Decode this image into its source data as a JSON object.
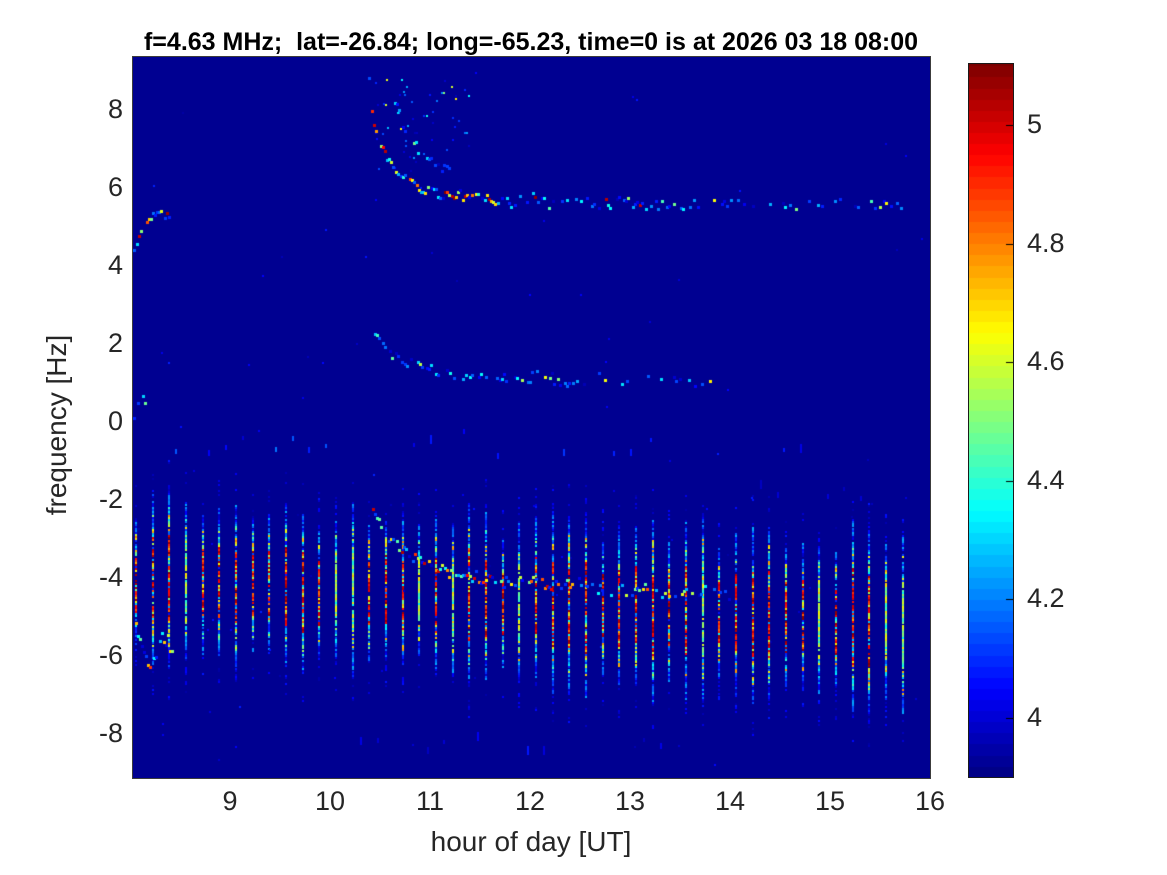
{
  "chart_data": {
    "type": "heatmap",
    "title": "f=4.63 MHz;  lat=-26.84; long=-65.23, time=0 is at 2026 03 18 08:00",
    "xlabel": "hour of day [UT]",
    "ylabel": "frequency [Hz]",
    "x_range": [
      8.03,
      16.0
    ],
    "y_range": [
      -9.13,
      9.36
    ],
    "x_ticks": [
      9,
      10,
      11,
      12,
      13,
      14,
      15,
      16
    ],
    "y_ticks": [
      8,
      6,
      4,
      2,
      0,
      -2,
      -4,
      -6,
      -8
    ],
    "grid": false,
    "background_value": 3.92,
    "colorbar": {
      "colormap": "jet",
      "min": 3.9,
      "max": 5.1,
      "display_min": 3.9005,
      "display_max": 5.103,
      "ticks": [
        5,
        4.8,
        4.6,
        4.4,
        4.2,
        4
      ],
      "position": "right"
    },
    "features": {
      "stripes": {
        "comment": "periodic vertical spectral lines every 10 min, drifting downward",
        "t_start": 8.05,
        "t_end": 15.85,
        "interval": 0.1667,
        "center_start": -4.0,
        "center_end": -5.15,
        "half_len": 2.05
      },
      "dot_rows": [
        {
          "freq": -0.5,
          "jitter": 0.35,
          "t0": 8.45,
          "t1": 10.05,
          "prob": 0.7,
          "vmin": 3.98,
          "vmax": 4.2
        },
        {
          "freq": -0.55,
          "jitter": 0.35,
          "t0": 10.5,
          "t1": 13.1,
          "prob": 0.45,
          "vmin": 3.97,
          "vmax": 4.12
        },
        {
          "freq": -0.6,
          "jitter": 0.3,
          "t0": 13.2,
          "t1": 15.3,
          "prob": 0.2,
          "vmin": 3.96,
          "vmax": 4.08
        },
        {
          "freq": -8.25,
          "jitter": 0.2,
          "t0": 10.3,
          "t1": 13.6,
          "prob": 0.3,
          "vmin": 3.96,
          "vmax": 4.1
        },
        {
          "freq": -1.8,
          "jitter": 0.3,
          "t0": 13.3,
          "t1": 15.6,
          "prob": 0.35,
          "vmin": 3.96,
          "vmax": 4.1
        }
      ],
      "traces": [
        {
          "name": "sunrise-trace-upper",
          "palette": "hot",
          "density": 0.92,
          "spread": 0.13,
          "size": 3,
          "fade_after": 0.42,
          "points": [
            [
              10.38,
              8.75
            ],
            [
              10.41,
              8.0
            ],
            [
              10.45,
              7.45
            ],
            [
              10.52,
              7.0
            ],
            [
              10.6,
              6.6
            ],
            [
              10.72,
              6.3
            ],
            [
              10.88,
              6.05
            ],
            [
              11.05,
              5.9
            ],
            [
              11.25,
              5.82
            ],
            [
              11.45,
              5.9
            ],
            [
              11.6,
              5.7
            ],
            [
              11.8,
              5.65
            ],
            [
              12.0,
              5.8
            ],
            [
              12.2,
              5.6
            ],
            [
              12.45,
              5.72
            ],
            [
              12.7,
              5.6
            ],
            [
              12.95,
              5.68
            ],
            [
              13.2,
              5.58
            ],
            [
              13.45,
              5.62
            ]
          ]
        },
        {
          "name": "sunrise-trace-upper-tail",
          "palette": "cool",
          "density": 0.22,
          "spread": 0.12,
          "size": 3,
          "points": [
            [
              13.5,
              5.6
            ],
            [
              14.0,
              5.63
            ],
            [
              14.5,
              5.58
            ],
            [
              15.0,
              5.65
            ],
            [
              15.4,
              5.6
            ],
            [
              15.9,
              5.63
            ]
          ]
        },
        {
          "name": "sunrise-trace-echo",
          "palette": "cool",
          "density": 0.38,
          "spread": 0.12,
          "size": 3,
          "points": [
            [
              10.62,
              8.45
            ],
            [
              10.72,
              7.7
            ],
            [
              10.85,
              7.1
            ],
            [
              11.0,
              6.7
            ],
            [
              11.2,
              6.4
            ]
          ]
        },
        {
          "name": "sunrise-trace-middle",
          "palette": "cool",
          "density": 0.6,
          "spread": 0.15,
          "size": 3,
          "fade_after": 0.6,
          "points": [
            [
              10.42,
              2.25
            ],
            [
              10.52,
              1.95
            ],
            [
              10.65,
              1.72
            ],
            [
              10.82,
              1.52
            ],
            [
              11.05,
              1.38
            ],
            [
              11.3,
              1.22
            ],
            [
              11.55,
              1.32
            ],
            [
              11.8,
              1.12
            ],
            [
              12.1,
              1.22
            ],
            [
              12.4,
              1.05
            ],
            [
              12.7,
              1.15
            ],
            [
              13.0,
              1.05
            ],
            [
              13.3,
              1.1
            ],
            [
              13.6,
              1.0
            ],
            [
              13.9,
              1.05
            ]
          ]
        },
        {
          "name": "sunrise-trace-lower",
          "palette": "warm",
          "density": 0.8,
          "spread": 0.16,
          "size": 3,
          "fade_after": 0.55,
          "points": [
            [
              10.42,
              -2.05
            ],
            [
              10.48,
              -2.45
            ],
            [
              10.56,
              -2.85
            ],
            [
              10.66,
              -3.15
            ],
            [
              10.8,
              -3.45
            ],
            [
              11.0,
              -3.65
            ],
            [
              11.25,
              -3.85
            ],
            [
              11.5,
              -3.95
            ],
            [
              11.75,
              -4.1
            ],
            [
              12.0,
              -4.0
            ],
            [
              12.25,
              -4.2
            ],
            [
              12.5,
              -4.1
            ],
            [
              12.8,
              -4.3
            ],
            [
              13.1,
              -4.25
            ],
            [
              13.4,
              -4.35
            ],
            [
              13.7,
              -4.3
            ],
            [
              14.0,
              -4.4
            ]
          ]
        },
        {
          "name": "left-squiggle-upper",
          "palette": "mixed",
          "density": 0.85,
          "spread": 0.14,
          "size": 3,
          "points": [
            [
              8.03,
              4.3
            ],
            [
              8.06,
              4.6
            ],
            [
              8.1,
              4.85
            ],
            [
              8.16,
              5.05
            ],
            [
              8.22,
              5.25
            ],
            [
              8.28,
              5.45
            ],
            [
              8.34,
              5.35
            ],
            [
              8.4,
              5.15
            ]
          ]
        },
        {
          "name": "left-squiggle-zero",
          "palette": "cool",
          "density": 0.7,
          "spread": 0.12,
          "size": 3,
          "points": [
            [
              8.03,
              0.1
            ],
            [
              8.07,
              0.4
            ],
            [
              8.12,
              0.65
            ],
            [
              8.16,
              0.45
            ]
          ]
        },
        {
          "name": "left-squiggle-lower",
          "palette": "mixed",
          "density": 0.85,
          "spread": 0.18,
          "size": 3,
          "points": [
            [
              8.03,
              -4.9
            ],
            [
              8.07,
              -5.3
            ],
            [
              8.11,
              -5.7
            ],
            [
              8.15,
              -6.0
            ],
            [
              8.21,
              -6.15
            ],
            [
              8.27,
              -5.7
            ],
            [
              8.31,
              -5.35
            ],
            [
              8.37,
              -5.6
            ],
            [
              8.43,
              -5.95
            ]
          ]
        }
      ],
      "scatter": [
        {
          "name": "above-sunrise-speckle",
          "h0": 10.45,
          "h1": 11.4,
          "f0": 6.4,
          "f1": 8.8,
          "count": 55,
          "palette": "cool",
          "size": 2
        },
        {
          "name": "background-speckle",
          "h0": 8.05,
          "h1": 15.95,
          "f0": -8.8,
          "f1": 9.0,
          "count": 90,
          "palette": "faint",
          "size": 2
        }
      ]
    }
  }
}
